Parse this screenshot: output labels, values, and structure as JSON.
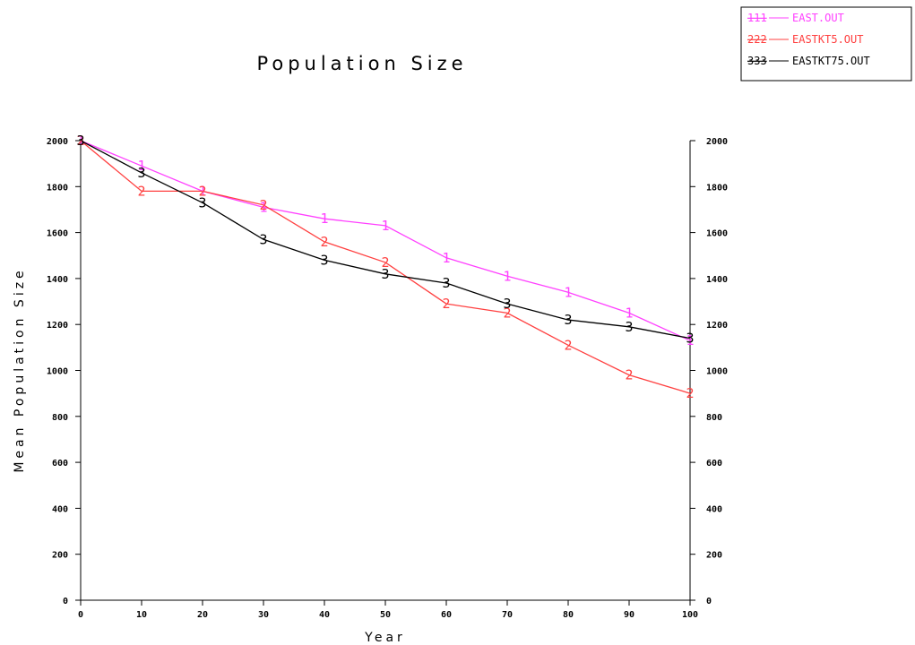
{
  "chart_data": {
    "type": "line",
    "title": "Population Size",
    "xlabel": "Year",
    "ylabel": "Mean Population Size",
    "x": [
      0,
      10,
      20,
      30,
      40,
      50,
      60,
      70,
      80,
      90,
      100
    ],
    "x_tick_labels": [
      "0",
      "10",
      "20",
      "30",
      "40",
      "50",
      "60",
      "70",
      "80",
      "90",
      "100"
    ],
    "y_tick_labels": [
      "0",
      "200",
      "400",
      "600",
      "800",
      "1000",
      "1200",
      "1400",
      "1600",
      "1800",
      "2000"
    ],
    "y_tick_values": [
      0,
      200,
      400,
      600,
      800,
      1000,
      1200,
      1400,
      1600,
      1800,
      2000
    ],
    "xlim": [
      0,
      100
    ],
    "ylim": [
      0,
      2000
    ],
    "grid": false,
    "right_axis_mirrored": true,
    "legend_position": "top-right",
    "series": [
      {
        "name": "EAST.OUT",
        "marker": "1",
        "legend_marker": "111",
        "color": "#ff40ff",
        "values": [
          2000,
          1890,
          1780,
          1710,
          1660,
          1630,
          1490,
          1410,
          1340,
          1250,
          1130
        ]
      },
      {
        "name": "EASTKT5.OUT",
        "marker": "2",
        "legend_marker": "222",
        "color": "#ff4040",
        "values": [
          2000,
          1780,
          1780,
          1720,
          1560,
          1470,
          1290,
          1250,
          1110,
          980,
          900
        ]
      },
      {
        "name": "EASTKT75.OUT",
        "marker": "3",
        "legend_marker": "333",
        "color": "#000000",
        "values": [
          2000,
          1860,
          1730,
          1570,
          1480,
          1420,
          1380,
          1290,
          1220,
          1190,
          1140
        ]
      }
    ]
  }
}
